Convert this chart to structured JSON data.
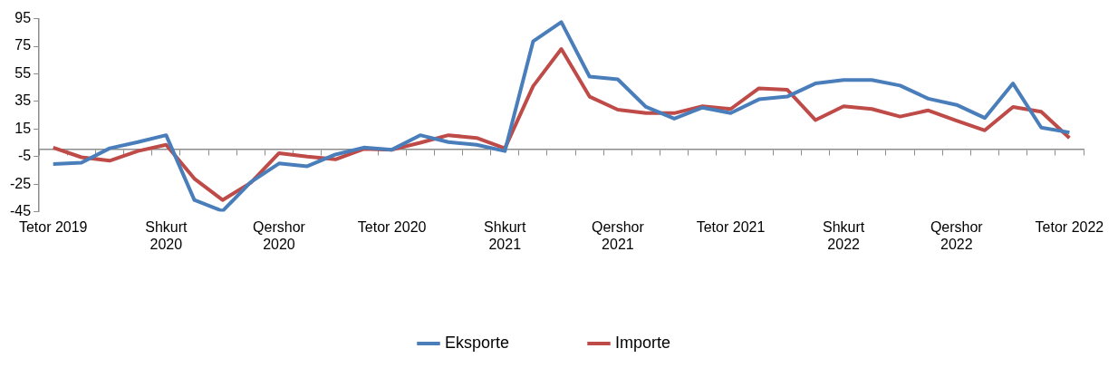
{
  "chart_data": {
    "type": "line",
    "categories": [
      "Tetor 2019",
      null,
      null,
      null,
      "Shkurt 2020",
      null,
      null,
      null,
      "Qershor 2020",
      null,
      null,
      null,
      "Tetor 2020",
      null,
      null,
      null,
      "Shkurt 2021",
      null,
      null,
      null,
      "Qershor 2021",
      null,
      null,
      null,
      "Tetor 2021",
      null,
      null,
      null,
      "Shkurt 2022",
      null,
      null,
      null,
      "Qershor 2022",
      null,
      null,
      null,
      "Tetor 2022"
    ],
    "series": [
      {
        "name": "Eksporte",
        "color": "#4a7ebb",
        "values": [
          -10.5,
          -9.5,
          1,
          5.5,
          10.5,
          -36.5,
          -44.5,
          -23.5,
          -10,
          -12,
          -3.5,
          1.5,
          0,
          10.5,
          5.5,
          3.5,
          -1,
          78.5,
          92.5,
          53,
          51,
          31,
          22.5,
          30.5,
          26.5,
          36.5,
          38.5,
          48,
          50.5,
          50.5,
          46.5,
          37,
          32.5,
          23,
          48,
          16,
          12.5
        ]
      },
      {
        "name": "Importe",
        "color": "#be4b48",
        "values": [
          1.5,
          -5.5,
          -8,
          -1,
          3.5,
          -21,
          -36.5,
          -24,
          -2.5,
          -5,
          -7,
          0.5,
          0,
          5,
          10.5,
          8.5,
          1,
          46,
          73,
          38.5,
          29,
          26.5,
          26.5,
          31.5,
          29.5,
          44.5,
          43.5,
          21.5,
          31.5,
          29.5,
          24,
          28.5,
          21,
          14,
          31,
          27.5,
          8.5
        ]
      }
    ],
    "ylim": [
      -45,
      95
    ],
    "yticks": [
      -45,
      -25,
      -5,
      15,
      35,
      55,
      75,
      95
    ],
    "grid": false,
    "legend": "bottom",
    "marker": "none",
    "line_style": "solid"
  }
}
